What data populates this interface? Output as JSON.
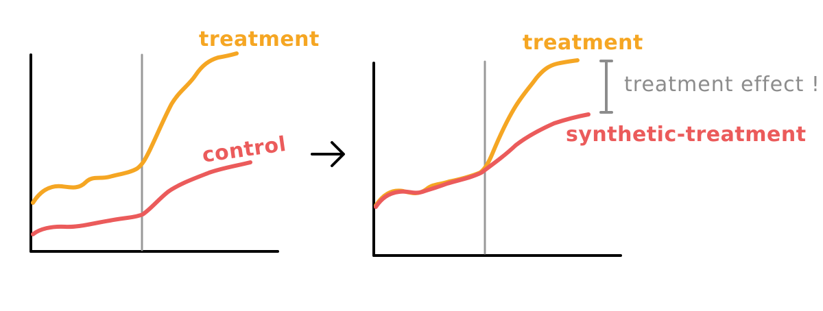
{
  "colors": {
    "axis": "#000000",
    "divider": "#999999",
    "treatment": "#F5A623",
    "control": "#EB5B5B",
    "effect": "#8C8C8C",
    "arrow": "#000000"
  },
  "left_panel": {
    "treatment_label": "treatment",
    "control_label": "control"
  },
  "right_panel": {
    "treatment_label": "treatment",
    "synthetic_label": "synthetic-treatment",
    "effect_label": "treatment effect !"
  },
  "arrow_icon": "right-arrow-icon"
}
